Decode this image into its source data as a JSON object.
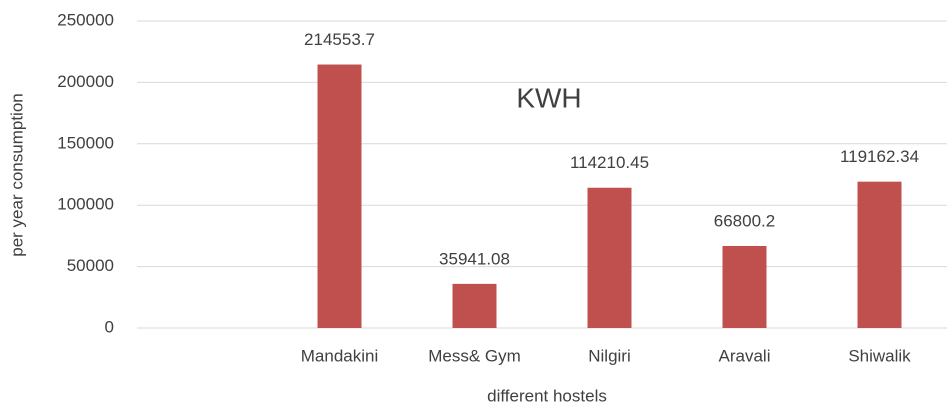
{
  "chart_data": {
    "type": "bar",
    "categories": [
      null,
      "Mandakini",
      "Mess& Gym",
      "Nilgiri",
      "Aravali",
      "Shiwalik"
    ],
    "series": [
      {
        "name": "KWH",
        "color": "#c0504d",
        "values": [
          null,
          214553.7,
          35941.08,
          114210.45,
          66800.2,
          119162.34
        ]
      }
    ],
    "xlabel": "different hostels",
    "ylabel": "per year consumption",
    "ylim": [
      0,
      250000
    ],
    "yticks": [
      0,
      50000,
      100000,
      150000,
      200000,
      250000
    ],
    "grid": true
  }
}
